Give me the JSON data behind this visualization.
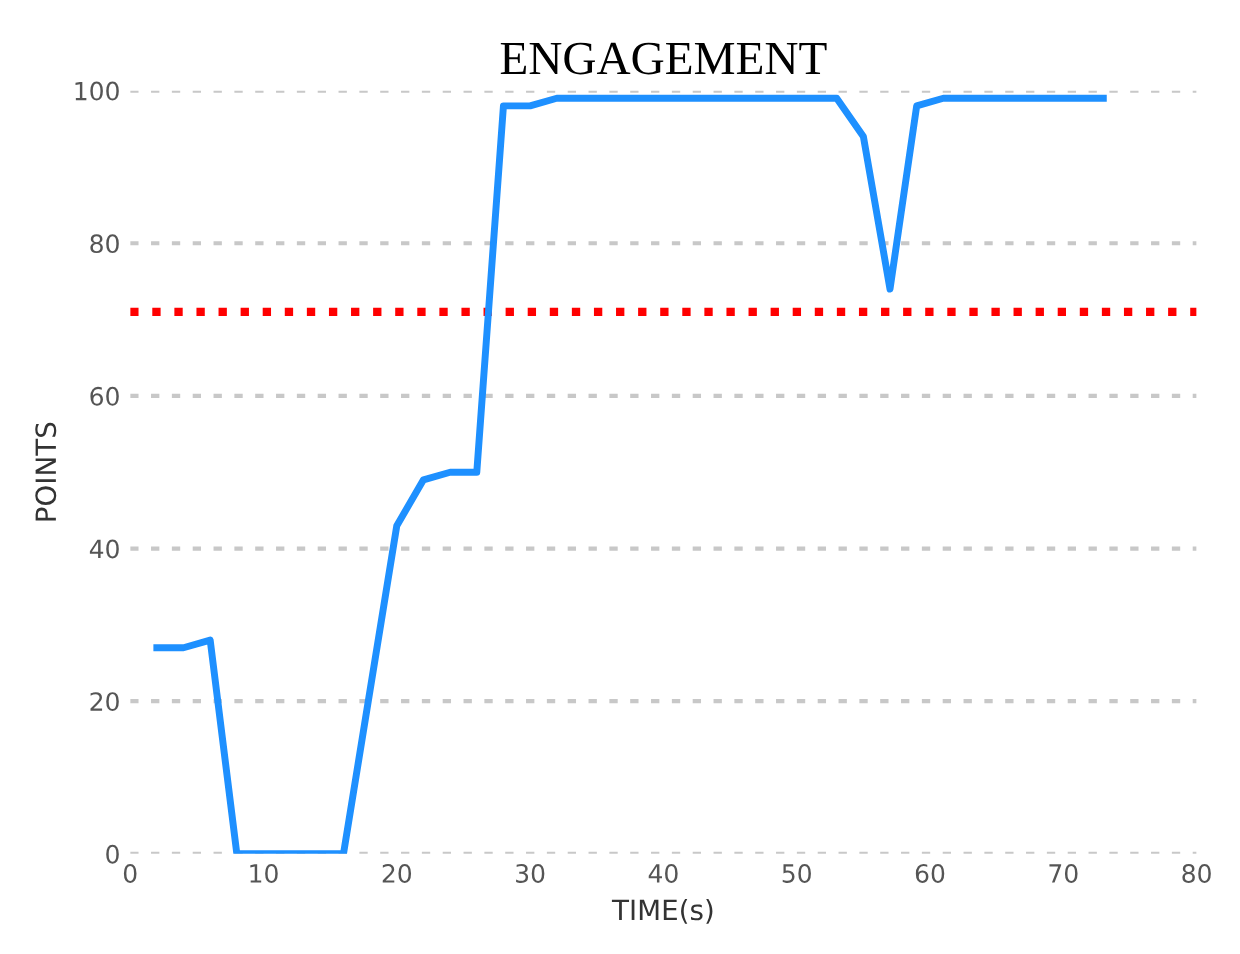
{
  "chart_data": {
    "type": "line",
    "title": "ENGAGEMENT",
    "xlabel": "TIME(s)",
    "ylabel": "POINTS",
    "x": [
      2,
      4,
      6,
      8,
      16,
      20,
      22,
      24,
      26,
      28,
      30,
      32,
      53,
      55,
      57,
      59,
      61,
      73
    ],
    "series": [
      {
        "color": "#1e90ff",
        "values": [
          27,
          27,
          28,
          0,
          0,
          43,
          49,
          50,
          50,
          98,
          98,
          99,
          99,
          94,
          74,
          98,
          99,
          99
        ]
      }
    ],
    "xlim": [
      0,
      80
    ],
    "xticks": [
      0,
      10,
      20,
      30,
      40,
      50,
      60,
      70,
      80
    ],
    "ylim": [
      0,
      100
    ],
    "yticks": [
      0,
      20,
      40,
      60,
      80,
      100
    ],
    "grid": "y",
    "line_style": "solid",
    "ref_lines": [
      {
        "axis": "y",
        "value": 71,
        "label": null,
        "color": "#ff0000",
        "line_style": "dotted"
      }
    ]
  }
}
